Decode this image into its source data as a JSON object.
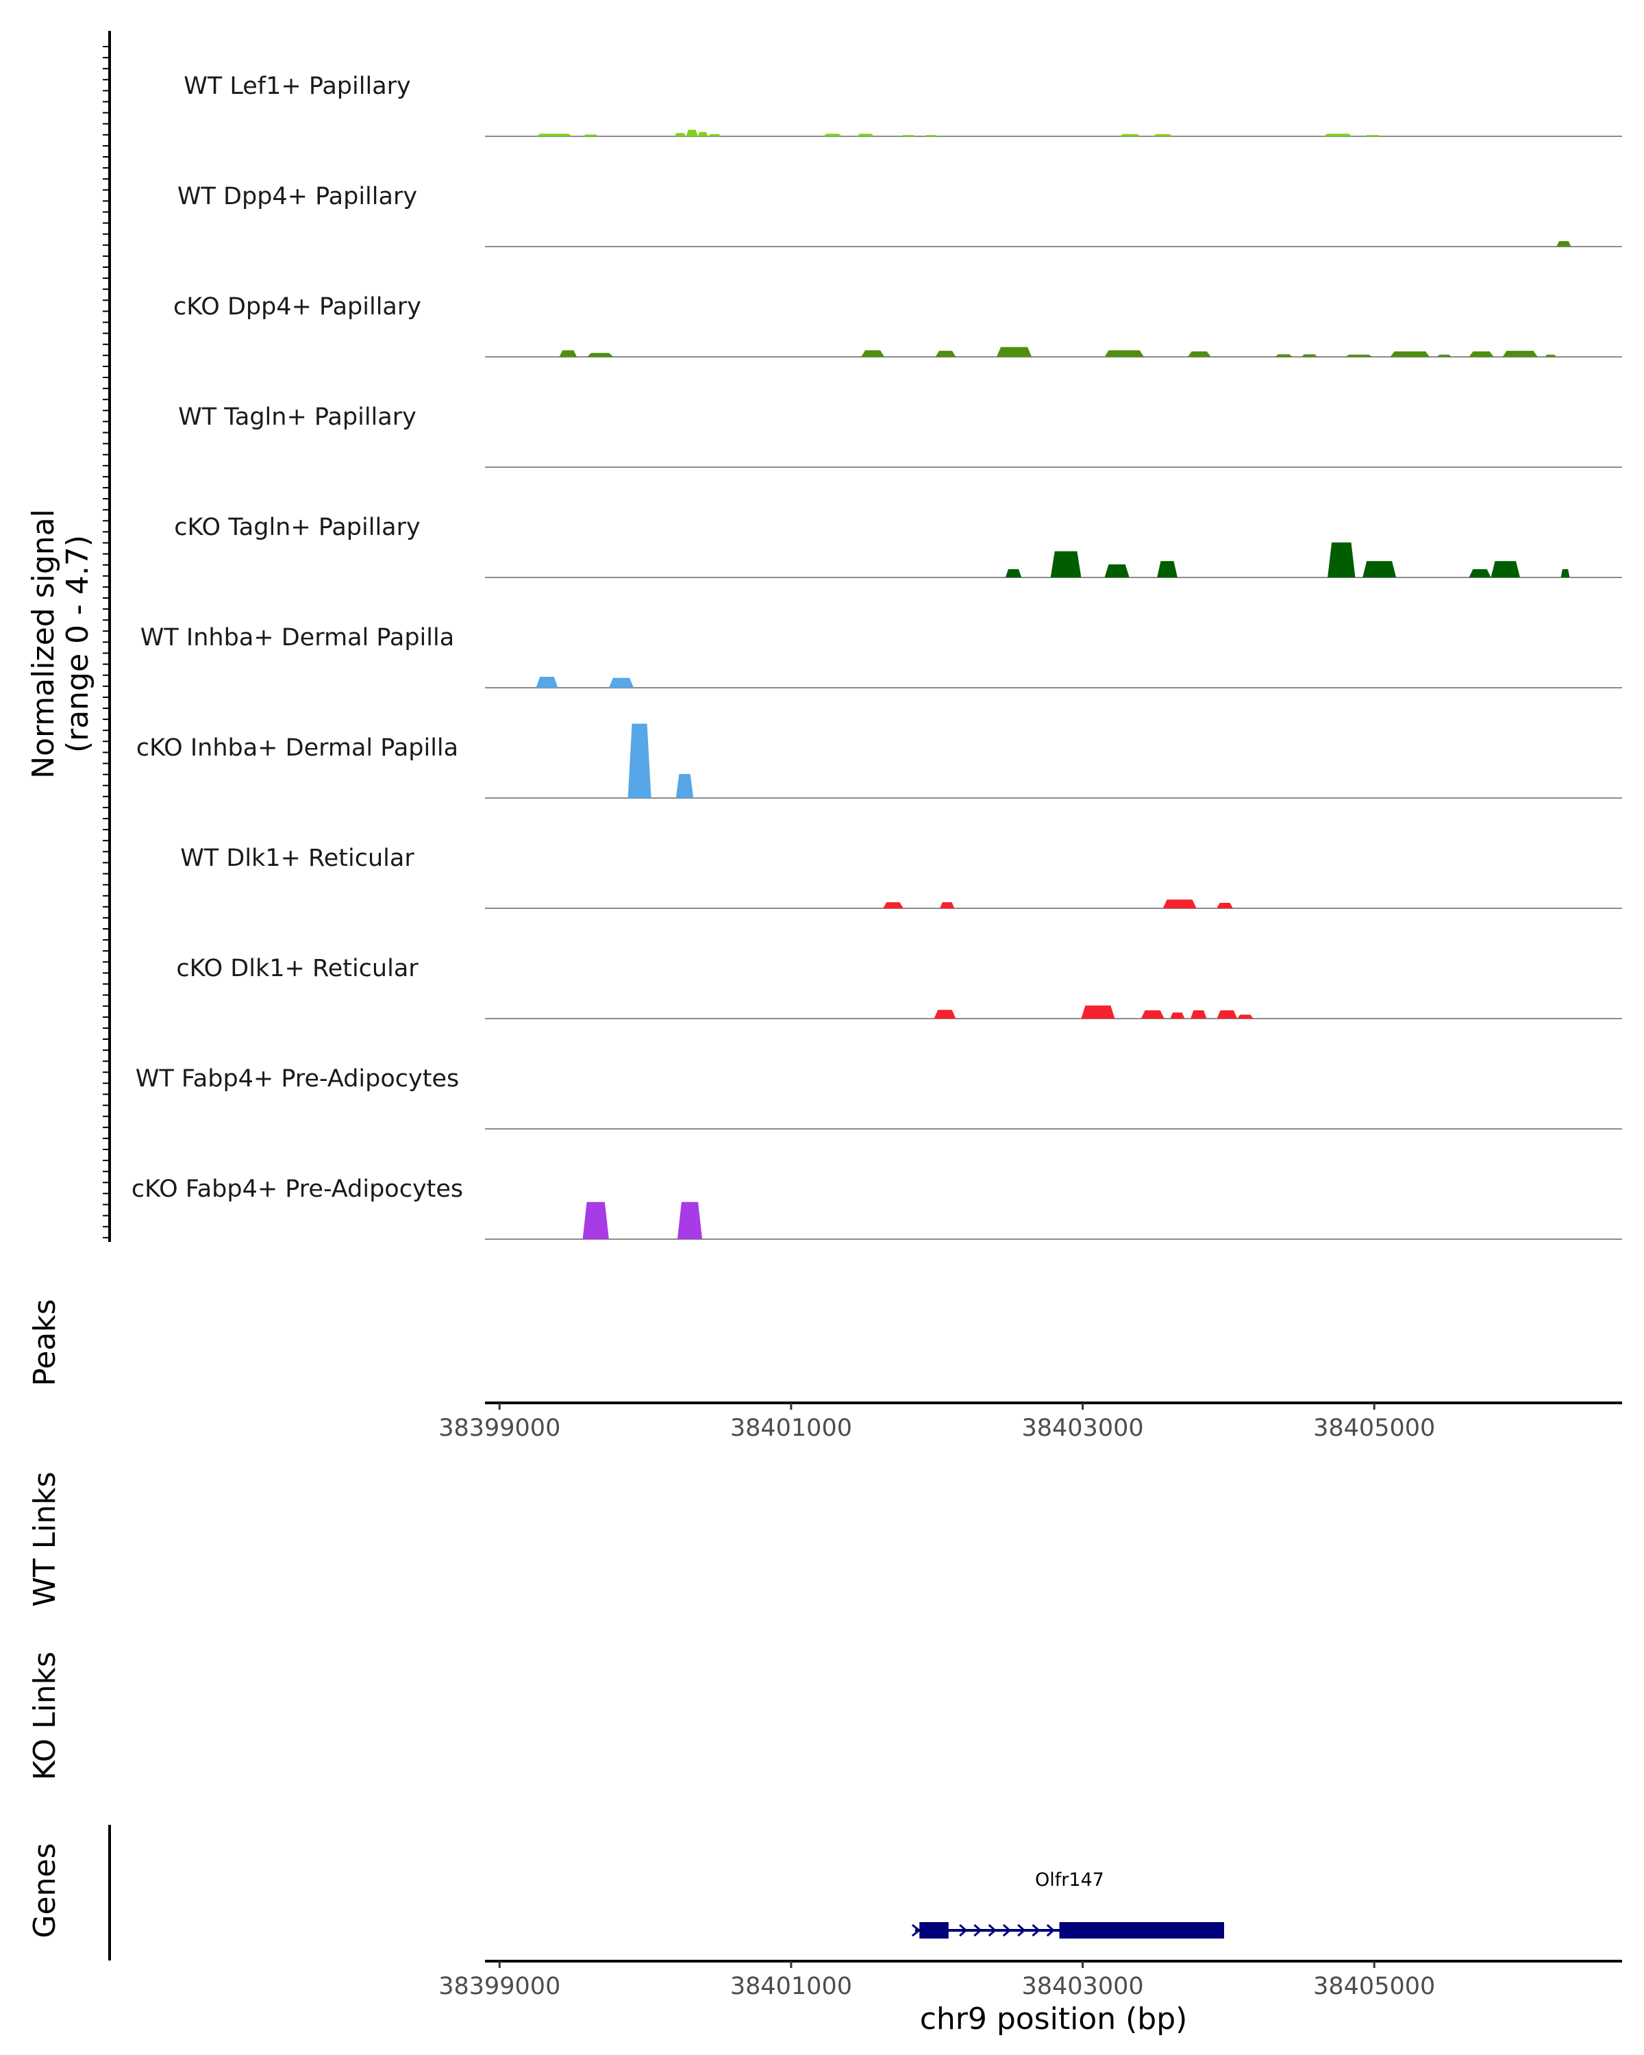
{
  "chart_data": {
    "type": "area",
    "title": "",
    "signal_axis_label": "Normalized signal",
    "signal_range_label": "(range 0 - 4.7)",
    "signal_range": [
      0,
      4.7
    ],
    "xlabel": "chr9 position (bp)",
    "xlim": [
      38398900,
      38406700
    ],
    "xticks": [
      38399000,
      38401000,
      38403000,
      38405000
    ],
    "xtick_labels": [
      "38399000",
      "38401000",
      "38403000",
      "38405000"
    ],
    "tracks": [
      {
        "name": "WT Lef1+ Papillary",
        "color": "#7fd11a",
        "peaks": [
          [
            38399250,
            38399500,
            0.12
          ],
          [
            38399570,
            38399680,
            0.08
          ],
          [
            38400200,
            38400280,
            0.15
          ],
          [
            38400280,
            38400360,
            0.3
          ],
          [
            38400360,
            38400430,
            0.2
          ],
          [
            38400430,
            38400520,
            0.1
          ],
          [
            38401220,
            38401350,
            0.12
          ],
          [
            38401450,
            38401570,
            0.12
          ],
          [
            38401750,
            38401860,
            0.06
          ],
          [
            38401910,
            38402010,
            0.06
          ],
          [
            38403250,
            38403400,
            0.1
          ],
          [
            38403480,
            38403620,
            0.1
          ],
          [
            38404650,
            38404850,
            0.12
          ],
          [
            38404930,
            38405050,
            0.06
          ]
        ]
      },
      {
        "name": "WT Dpp4+ Papillary",
        "color": "#4e8f10",
        "peaks": [
          [
            38406250,
            38406350,
            0.25
          ]
        ]
      },
      {
        "name": "cKO Dpp4+ Papillary",
        "color": "#4e8f10",
        "peaks": [
          [
            38399410,
            38399530,
            0.3
          ],
          [
            38399600,
            38399780,
            0.18
          ],
          [
            38401480,
            38401640,
            0.3
          ],
          [
            38401990,
            38402130,
            0.28
          ],
          [
            38402410,
            38402650,
            0.45
          ],
          [
            38403150,
            38403420,
            0.3
          ],
          [
            38403720,
            38403880,
            0.25
          ],
          [
            38404320,
            38404440,
            0.12
          ],
          [
            38404500,
            38404610,
            0.12
          ],
          [
            38404800,
            38404990,
            0.1
          ],
          [
            38405110,
            38405380,
            0.25
          ],
          [
            38405430,
            38405530,
            0.1
          ],
          [
            38405650,
            38405820,
            0.25
          ],
          [
            38405880,
            38406120,
            0.28
          ],
          [
            38406170,
            38406250,
            0.1
          ]
        ]
      },
      {
        "name": "WT Tagln+ Papillary",
        "color": "#005e00",
        "peaks": []
      },
      {
        "name": "cKO Tagln+ Papillary",
        "color": "#005e00",
        "peaks": [
          [
            38402470,
            38402580,
            0.38
          ],
          [
            38402780,
            38402990,
            1.2
          ],
          [
            38403150,
            38403320,
            0.6
          ],
          [
            38403510,
            38403650,
            0.75
          ],
          [
            38404680,
            38404870,
            1.6
          ],
          [
            38404920,
            38405150,
            0.75
          ],
          [
            38405650,
            38405800,
            0.38
          ],
          [
            38405800,
            38406000,
            0.75
          ],
          [
            38406280,
            38406340,
            0.38
          ]
        ]
      },
      {
        "name": "WT Inhba+ Dermal Papilla",
        "color": "#56a6e8",
        "peaks": [
          [
            38399250,
            38399400,
            0.5
          ],
          [
            38399750,
            38399920,
            0.45
          ]
        ]
      },
      {
        "name": "cKO Inhba+ Dermal Papilla",
        "color": "#56a6e8",
        "peaks": [
          [
            38399880,
            38400040,
            3.4
          ],
          [
            38400210,
            38400330,
            1.1
          ]
        ]
      },
      {
        "name": "WT Dlk1+ Reticular",
        "color": "#f5222d",
        "peaks": [
          [
            38401630,
            38401770,
            0.28
          ],
          [
            38402020,
            38402120,
            0.28
          ],
          [
            38403550,
            38403780,
            0.4
          ],
          [
            38403920,
            38404030,
            0.25
          ]
        ]
      },
      {
        "name": "cKO Dlk1+ Reticular",
        "color": "#f5222d",
        "peaks": [
          [
            38401980,
            38402130,
            0.4
          ],
          [
            38402990,
            38403220,
            0.6
          ],
          [
            38403400,
            38403560,
            0.38
          ],
          [
            38403600,
            38403700,
            0.28
          ],
          [
            38403740,
            38403850,
            0.38
          ],
          [
            38403920,
            38404060,
            0.38
          ],
          [
            38404060,
            38404170,
            0.18
          ]
        ]
      },
      {
        "name": "WT Fabp4+ Pre-Adipocytes",
        "color": "#a83be8",
        "peaks": []
      },
      {
        "name": "cKO Fabp4+ Pre-Adipocytes",
        "color": "#a83be8",
        "peaks": [
          [
            38399570,
            38399750,
            1.7
          ],
          [
            38400220,
            38400390,
            1.7
          ]
        ]
      }
    ],
    "panels": {
      "peaks_label": "Peaks",
      "wt_links_label": "WT Links",
      "ko_links_label": "KO Links",
      "genes_label": "Genes"
    },
    "genes": [
      {
        "name": "Olfr147",
        "start": 38401850,
        "end": 38403970,
        "strand": "+",
        "exons": [
          [
            38401880,
            38402080
          ],
          [
            38402840,
            38403970
          ]
        ]
      }
    ]
  }
}
